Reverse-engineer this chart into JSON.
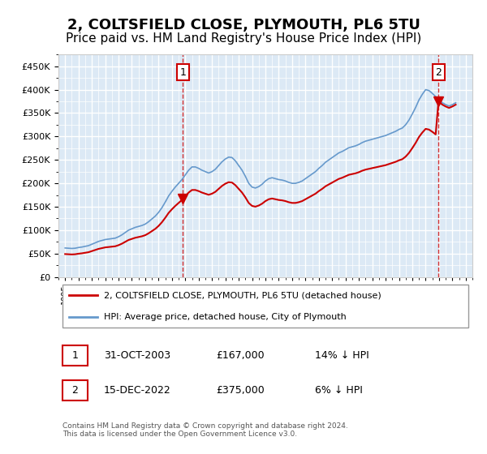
{
  "title": "2, COLTSFIELD CLOSE, PLYMOUTH, PL6 5TU",
  "subtitle": "Price paid vs. HM Land Registry's House Price Index (HPI)",
  "title_fontsize": 13,
  "subtitle_fontsize": 11,
  "bg_color": "#dce9f5",
  "plot_bg_color": "#dce9f5",
  "grid_color": "#ffffff",
  "hpi_color": "#6699cc",
  "price_color": "#cc0000",
  "dashed_color": "#cc0000",
  "ylim": [
    0,
    475000
  ],
  "yticks": [
    0,
    50000,
    100000,
    150000,
    200000,
    250000,
    300000,
    350000,
    400000,
    450000
  ],
  "year_start": 1995,
  "year_end": 2025,
  "transaction1_year": 2003.83,
  "transaction1_price": 167000,
  "transaction2_year": 2022.96,
  "transaction2_price": 375000,
  "legend_label1": "2, COLTSFIELD CLOSE, PLYMOUTH, PL6 5TU (detached house)",
  "legend_label2": "HPI: Average price, detached house, City of Plymouth",
  "table_row1": [
    "1",
    "31-OCT-2003",
    "£167,000",
    "14% ↓ HPI"
  ],
  "table_row2": [
    "2",
    "15-DEC-2022",
    "£375,000",
    "6% ↓ HPI"
  ],
  "footnote": "Contains HM Land Registry data © Crown copyright and database right 2024.\nThis data is licensed under the Open Government Licence v3.0.",
  "hpi_data": {
    "years": [
      1995.0,
      1995.25,
      1995.5,
      1995.75,
      1996.0,
      1996.25,
      1996.5,
      1996.75,
      1997.0,
      1997.25,
      1997.5,
      1997.75,
      1998.0,
      1998.25,
      1998.5,
      1998.75,
      1999.0,
      1999.25,
      1999.5,
      1999.75,
      2000.0,
      2000.25,
      2000.5,
      2000.75,
      2001.0,
      2001.25,
      2001.5,
      2001.75,
      2002.0,
      2002.25,
      2002.5,
      2002.75,
      2003.0,
      2003.25,
      2003.5,
      2003.75,
      2004.0,
      2004.25,
      2004.5,
      2004.75,
      2005.0,
      2005.25,
      2005.5,
      2005.75,
      2006.0,
      2006.25,
      2006.5,
      2006.75,
      2007.0,
      2007.25,
      2007.5,
      2007.75,
      2008.0,
      2008.25,
      2008.5,
      2008.75,
      2009.0,
      2009.25,
      2009.5,
      2009.75,
      2010.0,
      2010.25,
      2010.5,
      2010.75,
      2011.0,
      2011.25,
      2011.5,
      2011.75,
      2012.0,
      2012.25,
      2012.5,
      2012.75,
      2013.0,
      2013.25,
      2013.5,
      2013.75,
      2014.0,
      2014.25,
      2014.5,
      2014.75,
      2015.0,
      2015.25,
      2015.5,
      2015.75,
      2016.0,
      2016.25,
      2016.5,
      2016.75,
      2017.0,
      2017.25,
      2017.5,
      2017.75,
      2018.0,
      2018.25,
      2018.5,
      2018.75,
      2019.0,
      2019.25,
      2019.5,
      2019.75,
      2020.0,
      2020.25,
      2020.5,
      2020.75,
      2021.0,
      2021.25,
      2021.5,
      2021.75,
      2022.0,
      2022.25,
      2022.5,
      2022.75,
      2023.0,
      2023.25,
      2023.5,
      2023.75,
      2024.0,
      2024.25
    ],
    "values": [
      62000,
      61500,
      61000,
      61500,
      63000,
      64000,
      65500,
      67000,
      70000,
      73000,
      76000,
      78000,
      80000,
      81000,
      82000,
      83000,
      86000,
      90000,
      95000,
      100000,
      103000,
      106000,
      108000,
      110000,
      113000,
      118000,
      124000,
      130000,
      138000,
      148000,
      160000,
      173000,
      183000,
      192000,
      200000,
      208000,
      218000,
      228000,
      235000,
      235000,
      232000,
      228000,
      225000,
      222000,
      225000,
      230000,
      238000,
      246000,
      252000,
      256000,
      255000,
      248000,
      238000,
      228000,
      215000,
      200000,
      192000,
      190000,
      193000,
      198000,
      205000,
      210000,
      212000,
      210000,
      208000,
      207000,
      205000,
      202000,
      200000,
      200000,
      202000,
      205000,
      210000,
      215000,
      220000,
      225000,
      232000,
      238000,
      245000,
      250000,
      255000,
      260000,
      265000,
      268000,
      272000,
      276000,
      278000,
      280000,
      283000,
      287000,
      290000,
      292000,
      294000,
      296000,
      298000,
      300000,
      302000,
      305000,
      308000,
      311000,
      315000,
      318000,
      325000,
      335000,
      348000,
      362000,
      378000,
      390000,
      400000,
      398000,
      392000,
      385000,
      378000,
      372000,
      368000,
      365000,
      368000,
      372000
    ]
  },
  "price_data": {
    "years": [
      1995.0,
      1995.25,
      1995.5,
      1995.75,
      1996.0,
      1996.25,
      1996.5,
      1996.75,
      1997.0,
      1997.25,
      1997.5,
      1997.75,
      1998.0,
      1998.25,
      1998.5,
      1998.75,
      1999.0,
      1999.25,
      1999.5,
      1999.75,
      2000.0,
      2000.25,
      2000.5,
      2000.75,
      2001.0,
      2001.25,
      2001.5,
      2001.75,
      2002.0,
      2002.25,
      2002.5,
      2002.75,
      2003.0,
      2003.25,
      2003.5,
      2003.75,
      2004.0,
      2004.25,
      2004.5,
      2004.75,
      2005.0,
      2005.25,
      2005.5,
      2005.75,
      2006.0,
      2006.25,
      2006.5,
      2006.75,
      2007.0,
      2007.25,
      2007.5,
      2007.75,
      2008.0,
      2008.25,
      2008.5,
      2008.75,
      2009.0,
      2009.25,
      2009.5,
      2009.75,
      2010.0,
      2010.25,
      2010.5,
      2010.75,
      2011.0,
      2011.25,
      2011.5,
      2011.75,
      2012.0,
      2012.25,
      2012.5,
      2012.75,
      2013.0,
      2013.25,
      2013.5,
      2013.75,
      2014.0,
      2014.25,
      2014.5,
      2014.75,
      2015.0,
      2015.25,
      2015.5,
      2015.75,
      2016.0,
      2016.25,
      2016.5,
      2016.75,
      2017.0,
      2017.25,
      2017.5,
      2017.75,
      2018.0,
      2018.25,
      2018.5,
      2018.75,
      2019.0,
      2019.25,
      2019.5,
      2019.75,
      2020.0,
      2020.25,
      2020.5,
      2020.75,
      2021.0,
      2021.25,
      2021.5,
      2021.75,
      2022.0,
      2022.25,
      2022.5,
      2022.75,
      2023.0,
      2023.25,
      2023.5,
      2023.75,
      2024.0,
      2024.25
    ],
    "values": [
      58000,
      57000,
      56500,
      57000,
      58000,
      59000,
      60500,
      62000,
      64000,
      67000,
      70000,
      72000,
      74000,
      75000,
      76000,
      77000,
      79000,
      83000,
      88000,
      93000,
      96000,
      98000,
      100000,
      102000,
      105000,
      110000,
      116000,
      122000,
      130000,
      140000,
      150000,
      162000,
      null,
      null,
      null,
      null,
      null,
      null,
      null,
      null,
      null,
      null,
      null,
      null,
      null,
      null,
      null,
      null,
      null,
      null,
      null,
      null,
      null,
      null,
      null,
      null,
      null,
      null,
      null,
      null,
      null,
      null,
      null,
      null,
      null,
      null,
      null,
      null,
      null,
      null,
      null,
      null,
      null,
      null,
      null,
      null,
      null,
      null,
      null,
      null,
      null,
      null,
      null,
      null,
      null,
      null,
      null,
      null,
      null,
      null,
      null,
      null,
      null,
      null,
      null,
      null,
      null,
      null,
      null,
      null,
      null,
      null,
      null,
      null,
      null,
      null,
      null,
      null,
      null,
      null,
      null,
      null,
      null,
      null,
      null,
      null,
      null,
      null
    ]
  }
}
